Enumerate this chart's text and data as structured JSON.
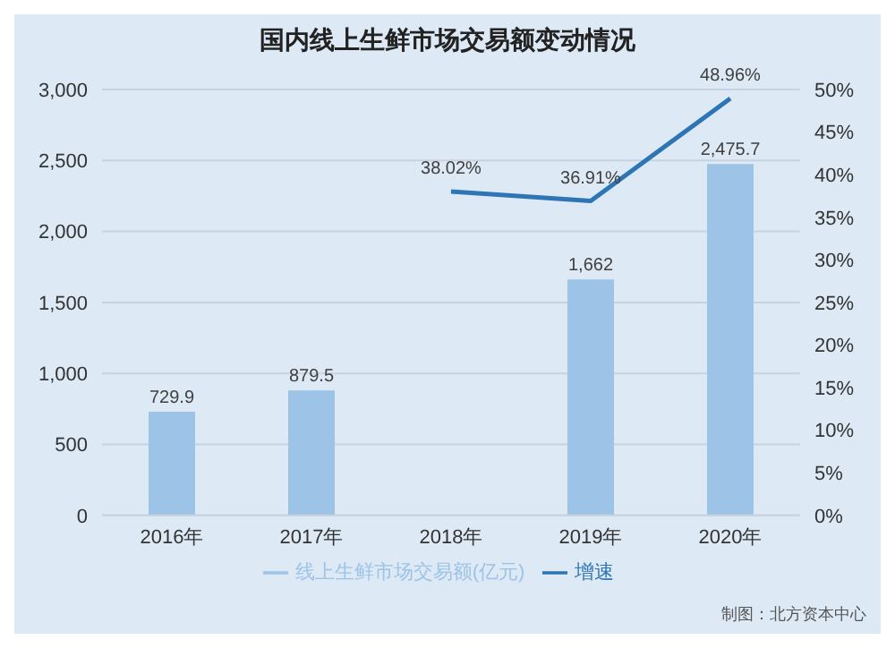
{
  "chart_data": {
    "type": "bar",
    "title": "国内线上生鲜市场交易额变动情况",
    "categories": [
      "2016年",
      "2017年",
      "2018年",
      "2019年",
      "2020年"
    ],
    "series": [
      {
        "name": "线上生鲜市场交易额(亿元)",
        "color": "#9dc3e6",
        "values": [
          729.9,
          879.5,
          null,
          1662,
          2475.7
        ],
        "value_labels": [
          "729.9",
          "879.5",
          null,
          "1,662",
          "2,475.7"
        ]
      },
      {
        "name": "增速",
        "type": "line",
        "axis": "y2",
        "color": "#2e75b6",
        "values": [
          null,
          null,
          38.02,
          36.91,
          48.96
        ],
        "value_labels": [
          null,
          null,
          "38.02%",
          "36.91%",
          "48.96%"
        ]
      }
    ],
    "ylim": [
      0,
      3000
    ],
    "yticks": [
      {
        "value": 0,
        "label": "0"
      },
      {
        "value": 500,
        "label": "500"
      },
      {
        "value": 1000,
        "label": "1,000"
      },
      {
        "value": 1500,
        "label": "1,500"
      },
      {
        "value": 2000,
        "label": "2,000"
      },
      {
        "value": 2500,
        "label": "2,500"
      },
      {
        "value": 3000,
        "label": "3,000"
      }
    ],
    "y2lim": [
      0,
      50
    ],
    "y2ticks": [
      {
        "value": 0,
        "label": "0%"
      },
      {
        "value": 5,
        "label": "5%"
      },
      {
        "value": 10,
        "label": "10%"
      },
      {
        "value": 15,
        "label": "15%"
      },
      {
        "value": 20,
        "label": "20%"
      },
      {
        "value": 25,
        "label": "25%"
      },
      {
        "value": 30,
        "label": "30%"
      },
      {
        "value": 35,
        "label": "35%"
      },
      {
        "value": 40,
        "label": "40%"
      },
      {
        "value": 45,
        "label": "45%"
      },
      {
        "value": 50,
        "label": "50%"
      }
    ],
    "grid": "y",
    "legend": "bottom",
    "marker": "none",
    "line_style": "solid",
    "annotations": [
      "制图：北方资本中心"
    ]
  }
}
